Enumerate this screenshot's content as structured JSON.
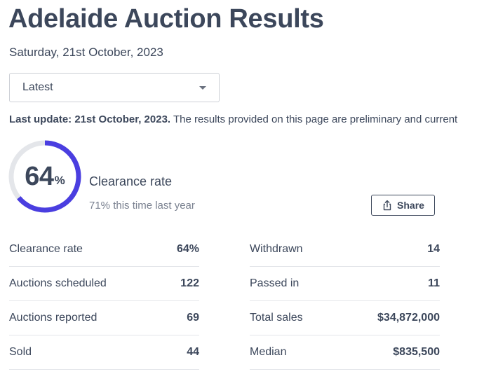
{
  "header": {
    "title": "Adelaide Auction Results",
    "date": "Saturday, 21st October, 2023"
  },
  "filter": {
    "selected": "Latest"
  },
  "update": {
    "bold": "Last update: 21st October, 2023.",
    "text": " The results provided on this page are preliminary and current"
  },
  "clearance": {
    "value": 64,
    "number": "64",
    "unit": "%",
    "label": "Clearance rate",
    "comparison": "71% this time last year",
    "ring_color": "#4a3ee0",
    "track_color": "#e4e6ea"
  },
  "share": {
    "label": "Share"
  },
  "stats_left": [
    {
      "label": "Clearance rate",
      "value": "64%"
    },
    {
      "label": "Auctions scheduled",
      "value": "122"
    },
    {
      "label": "Auctions reported",
      "value": "69"
    },
    {
      "label": "Sold",
      "value": "44"
    }
  ],
  "stats_right": [
    {
      "label": "Withdrawn",
      "value": "14"
    },
    {
      "label": "Passed in",
      "value": "11"
    },
    {
      "label": "Total sales",
      "value": "$34,872,000"
    },
    {
      "label": "Median",
      "value": "$835,500"
    }
  ]
}
